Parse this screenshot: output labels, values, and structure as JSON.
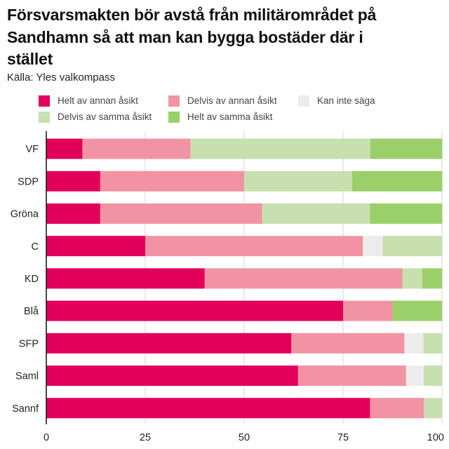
{
  "chart_data": {
    "type": "bar",
    "orientation": "horizontal",
    "stacked": true,
    "title": "Försvarsmakten bör avstå från militärområdet på Sandhamn så att man kan bygga bostäder där i stället",
    "subtitle": "Källa: Yles valkompass",
    "categories": [
      "VF",
      "SDP",
      "Gröna",
      "C",
      "KD",
      "Blå",
      "SFP",
      "Saml",
      "Sannf"
    ],
    "series": [
      {
        "name": "Helt av annan åsikt",
        "color": "#e2005a",
        "values": [
          9.1,
          13.6,
          13.6,
          25,
          40,
          75,
          61.9,
          63.6,
          81.8
        ]
      },
      {
        "name": "Delvis av annan åsikt",
        "color": "#f293a3",
        "values": [
          27.3,
          36.4,
          40.9,
          55,
          50,
          12.5,
          28.6,
          27.3,
          13.6
        ]
      },
      {
        "name": "Kan inte säga",
        "color": "#ececec",
        "values": [
          0,
          0,
          0,
          5,
          0,
          0,
          4.8,
          4.5,
          0
        ]
      },
      {
        "name": "Delvis av samma åsikt",
        "color": "#c8dfb0",
        "values": [
          45.5,
          27.3,
          27.3,
          15,
          5,
          0,
          4.8,
          4.5,
          4.5
        ]
      },
      {
        "name": "Helt av samma åsikt",
        "color": "#9bcf6a",
        "values": [
          18.2,
          22.7,
          18.2,
          0,
          5,
          12.5,
          0,
          0,
          0
        ]
      }
    ],
    "xlim": [
      0,
      100
    ],
    "xticks": [
      0,
      25,
      50,
      75,
      100
    ],
    "grid": true,
    "legend": "top"
  }
}
